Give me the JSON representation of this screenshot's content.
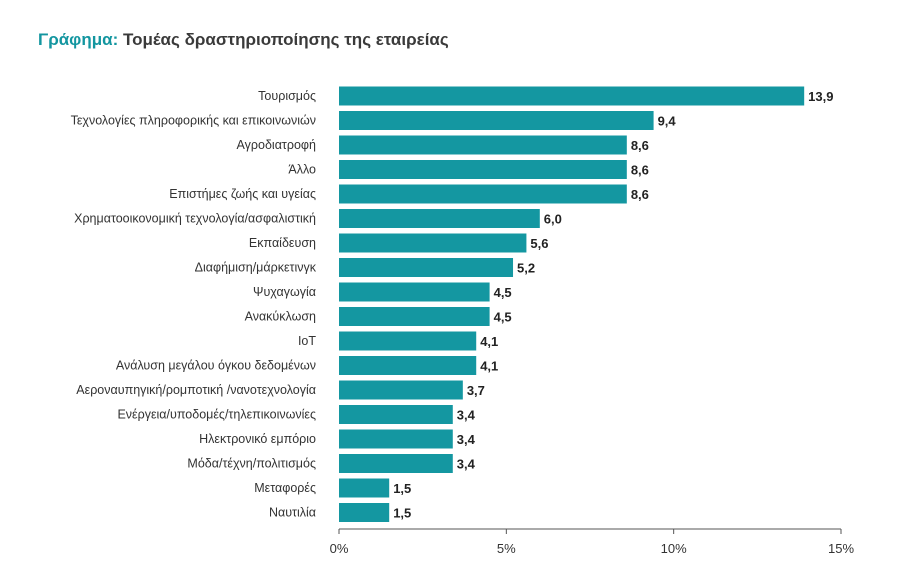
{
  "title": {
    "prefix": "Γράφημα:",
    "text": "Τομέας δραστηριοποίησης της εταιρείας"
  },
  "colors": {
    "bar": "#1497a1",
    "prefix": "#1396a0",
    "axis": "#555555"
  },
  "chart_data": {
    "type": "bar",
    "orientation": "horizontal",
    "categories": [
      "Τουρισμός",
      "Τεχνολογίες πληροφορικής και επικοινωνιών",
      "Αγροδιατροφή",
      "Άλλο",
      "Επιστήμες ζωής και υγείας",
      "Χρηματοοικονομική τεχνολογία/ασφαλιστική",
      "Εκπαίδευση",
      "Διαφήμιση/μάρκετινγκ",
      "Ψυχαγωγία",
      "Ανακύκλωση",
      "IoT",
      "Ανάλυση μεγάλου όγκου δεδομένων",
      "Αεροναυπηγική/ρομποτική /νανοτεχνολογία",
      "Ενέργεια/υποδομές/τηλεπικοινωνίες",
      "Ηλεκτρονικό εμπόριο",
      "Μόδα/τέχνη/πολιτισμός",
      "Μεταφορές",
      "Ναυτιλία"
    ],
    "values": [
      13.9,
      9.4,
      8.6,
      8.6,
      8.6,
      6.0,
      5.6,
      5.2,
      4.5,
      4.5,
      4.1,
      4.1,
      3.7,
      3.4,
      3.4,
      3.4,
      1.5,
      1.5
    ],
    "value_labels": [
      "13,9",
      "9,4",
      "8,6",
      "8,6",
      "8,6",
      "6,0",
      "5,6",
      "5,2",
      "4,5",
      "4,5",
      "4,1",
      "4,1",
      "3,7",
      "3,4",
      "3,4",
      "3,4",
      "1,5",
      "1,5"
    ],
    "xlim": [
      0,
      15
    ],
    "xticks": [
      0,
      5,
      10,
      15
    ],
    "xtick_labels": [
      "0%",
      "5%",
      "10%",
      "15%"
    ],
    "xlabel": "",
    "ylabel": "",
    "grid": false,
    "legend": "none"
  }
}
